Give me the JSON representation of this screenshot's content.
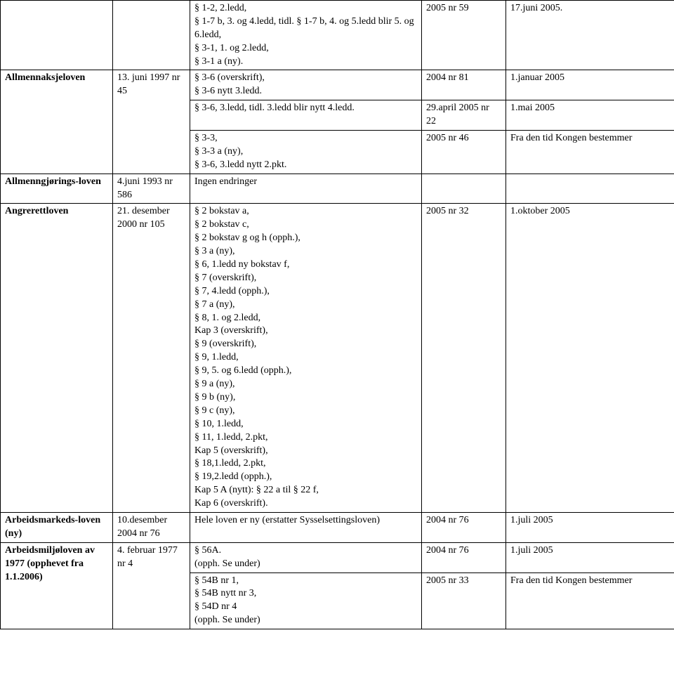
{
  "rows": [
    {
      "c1": "",
      "c1_bold": false,
      "c2": "",
      "c3": "§ 1-2, 2.ledd,\n§ 1-7 b, 3. og 4.ledd, tidl. § 1-7 b, 4. og 5.ledd blir 5. og 6.ledd,\n§ 3-1, 1. og 2.ledd,\n§ 3-1 a (ny).",
      "c4": "2005 nr 59",
      "c5": "17.juni 2005.",
      "c1_rowspan": 1,
      "c2_rowspan": 1
    },
    {
      "c1": "Allmennaksjeloven",
      "c1_bold": true,
      "c2": "13. juni 1997 nr 45",
      "c3": "§ 3-6 (overskrift),\n§ 3-6 nytt 3.ledd.",
      "c4": "2004 nr 81",
      "c5": "1.januar 2005",
      "c1_rowspan": 3,
      "c2_rowspan": 3
    },
    {
      "c3": "§ 3-6, 3.ledd, tidl. 3.ledd blir nytt 4.ledd.",
      "c4": "29.april 2005 nr 22",
      "c5": "1.mai 2005"
    },
    {
      "c3": "§ 3-3,\n§ 3-3 a (ny),\n§ 3-6, 3.ledd nytt 2.pkt.",
      "c4": "2005 nr 46",
      "c5": "Fra den tid Kongen bestemmer"
    },
    {
      "c1": "Allmenngjørings-loven",
      "c1_bold": true,
      "c2": "4.juni 1993 nr 586",
      "c3": "Ingen endringer",
      "c4": "",
      "c5": "",
      "c1_rowspan": 1,
      "c2_rowspan": 1
    },
    {
      "c1": "Angrerettloven",
      "c1_bold": true,
      "c2": "21. desember 2000 nr 105",
      "c3": "§ 2 bokstav a,\n§ 2 bokstav c,\n§ 2 bokstav g og h (opph.),\n§ 3 a (ny),\n§ 6, 1.ledd ny bokstav f,\n§ 7 (overskrift),\n§ 7, 4.ledd (opph.),\n§ 7 a (ny),\n§ 8, 1. og 2.ledd,\nKap 3 (overskrift),\n§ 9 (overskrift),\n§ 9, 1.ledd,\n§ 9, 5. og 6.ledd (opph.),\n§ 9 a (ny),\n§ 9 b (ny),\n§ 9 c (ny),\n§ 10, 1.ledd,\n§ 11, 1.ledd, 2.pkt,\nKap 5 (overskrift),\n§ 18,1.ledd, 2.pkt,\n§ 19,2.ledd (opph.),\nKap 5 A (nytt): § 22 a til § 22 f,\nKap 6 (overskrift).",
      "c4": "2005 nr 32",
      "c5": "1.oktober 2005",
      "c1_rowspan": 1,
      "c2_rowspan": 1
    },
    {
      "c1": "Arbeidsmarkeds-loven (ny)",
      "c1_bold": true,
      "c2": "10.desember 2004 nr 76",
      "c3": "Hele loven er ny (erstatter Sysselsettingsloven)",
      "c4": "2004 nr 76",
      "c5": "1.juli 2005",
      "c1_rowspan": 1,
      "c2_rowspan": 1
    },
    {
      "c1": "Arbeidsmiljøloven av 1977 (opphevet fra 1.1.2006)",
      "c1_bold": true,
      "c2": "4. februar 1977 nr 4",
      "c3": "§ 56A.\n(opph. Se under)",
      "c4": "2004 nr 76",
      "c5": "1.juli 2005",
      "c1_rowspan": 2,
      "c2_rowspan": 2
    },
    {
      "c3": "§ 54B nr 1,\n§ 54B nytt nr 3,\n§ 54D nr 4\n(opph. Se under)",
      "c4": "2005 nr 33",
      "c5": "Fra den tid Kongen bestemmer"
    }
  ]
}
